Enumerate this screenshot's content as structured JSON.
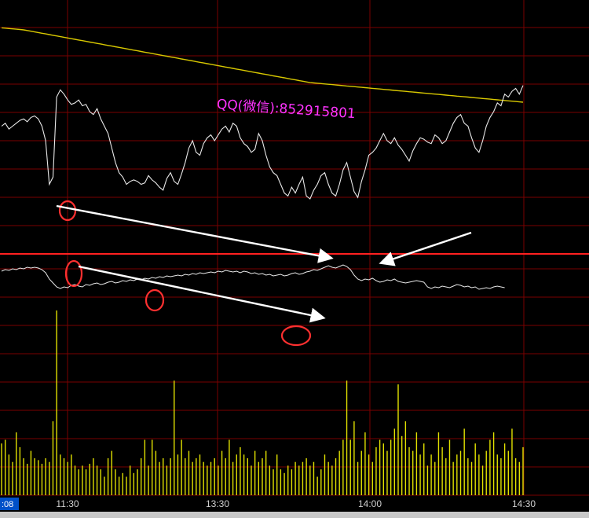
{
  "watermark": "QQ(微信):852915801",
  "cursor_time": ":08",
  "colors": {
    "background": "#000000",
    "grid": "#7a0000",
    "divider": "#ff2020",
    "price": "#e8e8e8",
    "avg_price": "#d8c800",
    "volume": "#e0e000",
    "annotation_circle": "#ff3030",
    "arrow": "#ffffff",
    "watermark": "#ff33ff"
  },
  "chart_data": {
    "type": "line",
    "x_ticks": [
      "11:30",
      "13:30",
      "14:00",
      "14:30"
    ],
    "grid": true,
    "series": [
      {
        "values": [
          70,
          72,
          68,
          70,
          72,
          74,
          75,
          73,
          76,
          77,
          75,
          70,
          60,
          30,
          35,
          90,
          95,
          92,
          88,
          85,
          86,
          88,
          84,
          85,
          80,
          78,
          82,
          75,
          70,
          65,
          55,
          45,
          38,
          35,
          30,
          32,
          33,
          32,
          30,
          31,
          36,
          33,
          31,
          28,
          26,
          34,
          38,
          32,
          30,
          37,
          45,
          55,
          60,
          52,
          50,
          58,
          62,
          64,
          60,
          64,
          68,
          70,
          66,
          72,
          70,
          62,
          58,
          56,
          52,
          54,
          65,
          60,
          50,
          42,
          38,
          36,
          30,
          24,
          22,
          28,
          24,
          30,
          35,
          22,
          20,
          26,
          30,
          36,
          38,
          30,
          24,
          22,
          30,
          40,
          45,
          35,
          25,
          21,
          32,
          40,
          50,
          52,
          55,
          60,
          65,
          60,
          58,
          62,
          57,
          54,
          50,
          46,
          53,
          58,
          62,
          61,
          59,
          58,
          64,
          62,
          58,
          60,
          66,
          72,
          76,
          78,
          72,
          70,
          62,
          55,
          52,
          60,
          70,
          76,
          80,
          86,
          84,
          92,
          90,
          94,
          96,
          92,
          98
        ]
      },
      {
        "values": [
          93.2,
          93.1,
          93.0,
          92.9,
          92.8,
          92.7,
          92.6,
          92.4,
          92.2,
          92.0,
          91.8,
          91.6,
          91.4,
          91.2,
          91.0,
          90.8,
          90.6,
          90.4,
          90.2,
          90.0,
          89.8,
          89.6,
          89.4,
          89.2,
          89.0,
          88.8,
          88.6,
          88.4,
          88.2,
          88.0,
          87.8,
          87.6,
          87.4,
          87.2,
          87.0,
          86.8,
          86.6,
          86.4,
          86.2,
          86.0,
          85.8,
          85.6,
          85.4,
          85.2,
          85.0,
          84.8,
          84.6,
          84.4,
          84.2,
          84.0,
          83.8,
          83.6,
          83.4,
          83.2,
          83.0,
          82.8,
          82.6,
          82.4,
          82.2,
          82.0,
          81.8,
          81.6,
          81.4,
          81.2,
          81.0,
          80.8,
          80.6,
          80.4,
          80.2,
          80.0,
          79.8,
          79.6,
          79.4,
          79.2,
          79.0,
          78.8,
          78.6,
          78.4,
          78.2,
          78.0,
          77.8,
          77.6,
          77.4,
          77.2,
          77.0,
          76.9,
          76.8,
          76.7,
          76.6,
          76.5,
          76.4,
          76.3,
          76.2,
          76.1,
          76.0,
          75.9,
          75.8,
          75.7,
          75.6,
          75.5,
          75.4,
          75.3,
          75.2,
          75.1,
          75.0,
          74.9,
          74.8,
          74.7,
          74.6,
          74.5,
          74.4,
          74.3,
          74.2,
          74.1,
          74.0,
          73.9,
          73.8,
          73.7,
          73.6,
          73.5,
          73.4,
          73.3,
          73.2,
          73.1,
          73.0,
          72.9,
          72.8,
          72.7,
          72.6,
          72.5,
          72.4,
          72.3,
          72.2,
          72.1,
          72.0,
          71.9,
          71.8,
          71.7,
          71.6,
          71.5,
          71.4,
          71.3,
          71.2
        ]
      },
      {
        "values": [
          50,
          52,
          51,
          53,
          52,
          54,
          53,
          55,
          54,
          55,
          54,
          52,
          48,
          40,
          35,
          30,
          28,
          30,
          29,
          32,
          33,
          31,
          30,
          33,
          32,
          34,
          35,
          33,
          34,
          36,
          37,
          35,
          36,
          38,
          37,
          39,
          38,
          40,
          39,
          41,
          40,
          42,
          41,
          43,
          42,
          44,
          43,
          44,
          45,
          44,
          46,
          45,
          47,
          46,
          48,
          47,
          48,
          49,
          48,
          50,
          49,
          51,
          50,
          49,
          50,
          48,
          50,
          49,
          47,
          48,
          46,
          47,
          45,
          46,
          44,
          45,
          46,
          44,
          45,
          47,
          48,
          46,
          47,
          49,
          50,
          52,
          51,
          53,
          55,
          57,
          55,
          54,
          56,
          58,
          56,
          52,
          45,
          40,
          38,
          40,
          39,
          41,
          38,
          36,
          37,
          39,
          38,
          40,
          37,
          36,
          35,
          36,
          37,
          38,
          37,
          36,
          30,
          28,
          30,
          29,
          31,
          30,
          29,
          31,
          33,
          32,
          30,
          31,
          29,
          30,
          27,
          28,
          29,
          28,
          30,
          31,
          30,
          29
        ]
      },
      {
        "values": [
          28,
          30,
          22,
          18,
          34,
          26,
          20,
          17,
          24,
          20,
          19,
          17,
          20,
          18,
          40,
          100,
          22,
          20,
          18,
          22,
          16,
          14,
          16,
          14,
          17,
          20,
          16,
          14,
          10,
          20,
          24,
          14,
          10,
          12,
          10,
          16,
          12,
          14,
          20,
          30,
          16,
          30,
          24,
          18,
          20,
          16,
          20,
          62,
          22,
          30,
          20,
          24,
          18,
          20,
          22,
          18,
          16,
          18,
          20,
          16,
          24,
          20,
          30,
          18,
          22,
          26,
          22,
          20,
          16,
          24,
          18,
          20,
          24,
          16,
          14,
          22,
          14,
          12,
          16,
          14,
          18,
          16,
          18,
          20,
          16,
          18,
          10,
          14,
          22,
          18,
          16,
          20,
          24,
          30,
          62,
          30,
          40,
          18,
          24,
          34,
          22,
          18,
          26,
          30,
          28,
          24,
          30,
          36,
          60,
          32,
          40,
          26,
          24,
          34,
          22,
          28,
          16,
          22,
          18,
          34,
          26,
          20,
          30,
          18,
          22,
          24,
          36,
          20,
          18,
          28,
          22,
          16,
          24,
          30,
          34,
          22,
          20,
          28,
          24,
          36,
          20,
          18,
          26
        ]
      }
    ]
  }
}
